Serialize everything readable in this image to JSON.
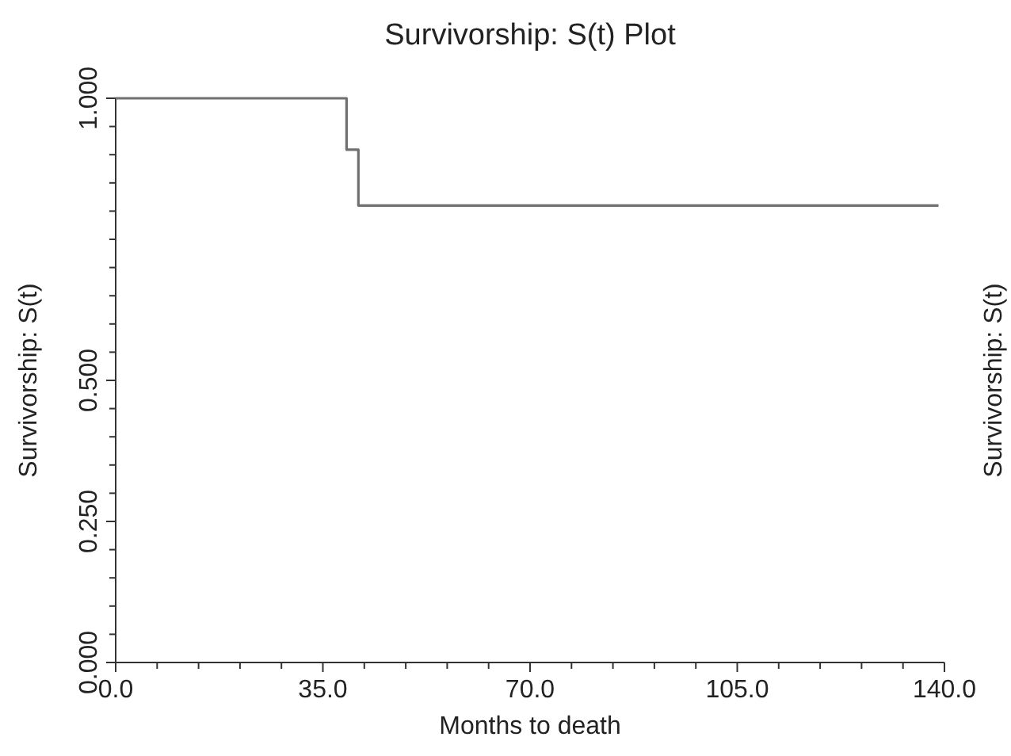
{
  "chart_data": {
    "type": "step",
    "title": "Survivorship: S(t) Plot",
    "xlabel": "Months to death",
    "ylabel": "Survivorship: S(t)",
    "y2label": "Survivorship: S(t)",
    "x": [
      0,
      39,
      41,
      139
    ],
    "series": [
      {
        "color": "#707070",
        "values": [
          1,
          0.909,
          0.81,
          0.81
        ]
      }
    ],
    "xlim": [
      0,
      140
    ],
    "ylim": [
      0,
      1
    ],
    "xticks": [
      {
        "value": 0,
        "label": "0.0"
      },
      {
        "value": 7,
        "label": null
      },
      {
        "value": 14,
        "label": null
      },
      {
        "value": 21,
        "label": null
      },
      {
        "value": 28,
        "label": null
      },
      {
        "value": 35,
        "label": "35.0"
      },
      {
        "value": 42,
        "label": null
      },
      {
        "value": 49,
        "label": null
      },
      {
        "value": 56,
        "label": null
      },
      {
        "value": 63,
        "label": null
      },
      {
        "value": 70,
        "label": "70.0"
      },
      {
        "value": 77,
        "label": null
      },
      {
        "value": 84,
        "label": null
      },
      {
        "value": 91,
        "label": null
      },
      {
        "value": 98,
        "label": null
      },
      {
        "value": 105,
        "label": "105.0"
      },
      {
        "value": 112,
        "label": null
      },
      {
        "value": 119,
        "label": null
      },
      {
        "value": 126,
        "label": null
      },
      {
        "value": 133,
        "label": null
      },
      {
        "value": 140,
        "label": "140.0"
      }
    ],
    "yticks": [
      {
        "value": 0,
        "label": "0.000"
      },
      {
        "value": 0.05,
        "label": null
      },
      {
        "value": 0.1,
        "label": null
      },
      {
        "value": 0.15,
        "label": null
      },
      {
        "value": 0.2,
        "label": null
      },
      {
        "value": 0.25,
        "label": "0.250"
      },
      {
        "value": 0.3,
        "label": null
      },
      {
        "value": 0.35,
        "label": null
      },
      {
        "value": 0.4,
        "label": null
      },
      {
        "value": 0.45,
        "label": null
      },
      {
        "value": 0.5,
        "label": "0.500"
      },
      {
        "value": 0.55,
        "label": null
      },
      {
        "value": 0.6,
        "label": null
      },
      {
        "value": 0.65,
        "label": null
      },
      {
        "value": 0.7,
        "label": null
      },
      {
        "value": 0.75,
        "label": null
      },
      {
        "value": 0.8,
        "label": null
      },
      {
        "value": 0.85,
        "label": null
      },
      {
        "value": 0.9,
        "label": null
      },
      {
        "value": 0.95,
        "label": null
      },
      {
        "value": 1,
        "label": "1.000"
      }
    ],
    "grid": false,
    "line_style": "solid",
    "marker": "none"
  }
}
